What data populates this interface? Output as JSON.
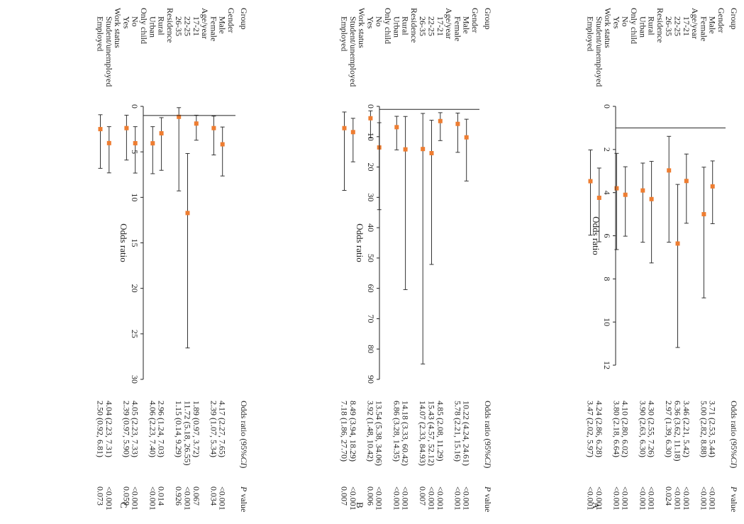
{
  "chart_data": [
    {
      "panel": "A",
      "type": "forest",
      "xlabel": "Odds ratio",
      "xlim": [
        0,
        12
      ],
      "xticks": [
        0,
        2,
        4,
        6,
        8,
        10,
        12
      ],
      "reference_line": 1,
      "header": {
        "group": "Group",
        "or": "Odds ratio (95%",
        "ci": "CI",
        "close": ")",
        "p": "P",
        "p_tail": "value"
      },
      "rows": [
        {
          "label": "Gender",
          "heading": true
        },
        {
          "label": "Male",
          "or": 3.71,
          "lo": 2.53,
          "hi": 5.44,
          "text": "3.71 (2.53, 5.44)",
          "p": "<0.001"
        },
        {
          "label": "Female",
          "or": 5.0,
          "lo": 2.82,
          "hi": 8.88,
          "text": "5.00 (2.82, 8.88)",
          "p": "<0.001"
        },
        {
          "label": "Age/year",
          "heading": true
        },
        {
          "label": "17-21",
          "or": 3.46,
          "lo": 2.21,
          "hi": 5.42,
          "text": "3.46 (2.21, 5.42)",
          "p": "<0.001"
        },
        {
          "label": "22-25",
          "or": 6.36,
          "lo": 3.62,
          "hi": 11.18,
          "text": "6.36 (3.62, 11.18)",
          "p": "<0.001"
        },
        {
          "label": "26-35",
          "or": 2.97,
          "lo": 1.39,
          "hi": 6.3,
          "text": "2.97 (1.39, 6.30)",
          "p": "0.024"
        },
        {
          "label": "Residence",
          "heading": true
        },
        {
          "label": "Rural",
          "or": 4.3,
          "lo": 2.55,
          "hi": 7.26,
          "text": "4.30 (2.55, 7.26)",
          "p": "<0.001"
        },
        {
          "label": "Urban",
          "or": 3.9,
          "lo": 2.63,
          "hi": 6.3,
          "text": "3.90 (2.63, 6.30)",
          "p": "<0.001"
        },
        {
          "label": "Only child",
          "heading": true
        },
        {
          "label": "No",
          "or": 4.1,
          "lo": 2.8,
          "hi": 6.02,
          "text": "4.10 (2.80, 6.02)",
          "p": "<0.001"
        },
        {
          "label": "Yes",
          "or": 3.8,
          "lo": 2.18,
          "hi": 6.64,
          "text": "3.80 (2.18, 6.64)",
          "p": "<0.001"
        },
        {
          "label": "Work status",
          "heading": true
        },
        {
          "label": "Student/unemployed",
          "or": 4.24,
          "lo": 2.86,
          "hi": 6.28,
          "text": "4.24 (2.86, 6.28)",
          "p": "<0.001"
        },
        {
          "label": "Employed",
          "or": 3.47,
          "lo": 2.02,
          "hi": 5.97,
          "text": "3.47 (2.02, 5.97)",
          "p": "<0.001"
        }
      ]
    },
    {
      "panel": "B",
      "type": "forest",
      "xlabel": "Odds ratio",
      "xlim": [
        0,
        90
      ],
      "xticks": [
        0,
        10,
        20,
        30,
        40,
        50,
        60,
        70,
        80,
        90
      ],
      "reference_line": 1,
      "header": {
        "group": "Group",
        "or": "Odds ratio (95%",
        "ci": "CI",
        "close": ")",
        "p": "P",
        "p_tail": "value"
      },
      "rows": [
        {
          "label": "Gender",
          "heading": true
        },
        {
          "label": "Male",
          "or": 10.22,
          "lo": 4.24,
          "hi": 24.61,
          "text": "10.22 (4.24, 24.61)",
          "p": "<0.001"
        },
        {
          "label": "Female",
          "or": 5.78,
          "lo": 2.21,
          "hi": 15.16,
          "text": "5.78 (2.21, 15.16)",
          "p": "<0.001"
        },
        {
          "label": "Age/year",
          "heading": true
        },
        {
          "label": "17-21",
          "or": 4.85,
          "lo": 2.08,
          "hi": 11.29,
          "text": "4.85 (2.08, 11.29)",
          "p": "<0.001"
        },
        {
          "label": "22-25",
          "or": 15.43,
          "lo": 4.57,
          "hi": 52.12,
          "text": "15.43 (4.57, 52.12)",
          "p": "<0.001"
        },
        {
          "label": "26-35",
          "or": 14.07,
          "lo": 2.33,
          "hi": 84.93,
          "text": "14.07 (2.33, 84.93)",
          "p": "0.007"
        },
        {
          "label": "Residence",
          "heading": true
        },
        {
          "label": "Rural",
          "or": 14.18,
          "lo": 3.33,
          "hi": 60.42,
          "text": "14.18 (3.33, 60.42)",
          "p": "<0.001"
        },
        {
          "label": "Urban",
          "or": 6.86,
          "lo": 3.28,
          "hi": 14.35,
          "text": "6.86 (3.28, 14.35)",
          "p": "<0.001"
        },
        {
          "label": "Only child",
          "heading": true
        },
        {
          "label": "No",
          "or": 13.54,
          "lo": 5.38,
          "hi": 34.06,
          "text": "13.54 (5.38, 34.06)",
          "p": "<0.001"
        },
        {
          "label": "Yes",
          "or": 3.92,
          "lo": 1.48,
          "hi": 10.42,
          "text": "3.92 (1.48, 10.42)",
          "p": "0.006"
        },
        {
          "label": "Work status",
          "heading": true
        },
        {
          "label": "Student/unemployed",
          "or": 8.49,
          "lo": 3.94,
          "hi": 18.29,
          "text": "8.49 (3.94, 18.29)",
          "p": "<0.001"
        },
        {
          "label": "Employed",
          "or": 7.18,
          "lo": 1.86,
          "hi": 27.7,
          "text": "7.18 (1.86, 27.70)",
          "p": "0.007"
        }
      ]
    },
    {
      "panel": "C",
      "type": "forest",
      "xlabel": "Odds ratio",
      "xlim": [
        0,
        30
      ],
      "xticks": [
        0,
        5,
        10,
        15,
        20,
        25,
        30
      ],
      "reference_line": 1,
      "header": {
        "group": "Group",
        "or": "Odds ratio (95%",
        "ci": "CI",
        "close": ")",
        "p": "P",
        "p_tail": "value"
      },
      "rows": [
        {
          "label": "Gender",
          "heading": true
        },
        {
          "label": "Male",
          "or": 4.17,
          "lo": 2.27,
          "hi": 7.65,
          "text": "4.17 (2.27, 7.65)",
          "p": "<0.001"
        },
        {
          "label": "Female",
          "or": 2.39,
          "lo": 1.07,
          "hi": 5.34,
          "text": "2.39 (1.07, 5.34)",
          "p": "0.034"
        },
        {
          "label": "Age/year",
          "heading": true
        },
        {
          "label": "17-21",
          "or": 1.89,
          "lo": 0.97,
          "hi": 3.72,
          "text": "1.89 (0.97, 3.72)",
          "p": "0.067"
        },
        {
          "label": "22-25",
          "or": 11.72,
          "lo": 5.18,
          "hi": 26.55,
          "text": "11.72 (5.18, 26.55)",
          "p": "<0.001"
        },
        {
          "label": "26-35",
          "or": 1.15,
          "lo": 0.14,
          "hi": 9.29,
          "text": "1.15 (0.14, 9.29)",
          "p": "0.926"
        },
        {
          "label": "Residence",
          "heading": true
        },
        {
          "label": "Rural",
          "or": 2.96,
          "lo": 1.24,
          "hi": 7.03,
          "text": "2.96 (1.24, 7.03)",
          "p": "0.014"
        },
        {
          "label": "Urban",
          "or": 4.06,
          "lo": 2.23,
          "hi": 7.4,
          "text": "4.06 (2.23, 7.40)",
          "p": "<0.001"
        },
        {
          "label": "Only child",
          "heading": true
        },
        {
          "label": "No",
          "or": 4.05,
          "lo": 2.23,
          "hi": 7.33,
          "text": "4.05 (2.23, 7.33)",
          "p": "<0.001"
        },
        {
          "label": "Yes",
          "or": 2.39,
          "lo": 0.97,
          "hi": 5.9,
          "text": "2.39 (0.97, 5.90)",
          "p": "0.059"
        },
        {
          "label": "Work status",
          "heading": true
        },
        {
          "label": "Student/unemployed",
          "or": 4.04,
          "lo": 2.23,
          "hi": 7.31,
          "text": "4.04 (2.23, 7.31)",
          "p": "<0.001"
        },
        {
          "label": "Employed",
          "or": 2.5,
          "lo": 0.92,
          "hi": 6.81,
          "text": "2.50 (0.92, 6.81)",
          "p": "0.073"
        }
      ]
    }
  ],
  "colors": {
    "marker": "#ee7d31",
    "line": "#333333",
    "axis": "#222222"
  }
}
